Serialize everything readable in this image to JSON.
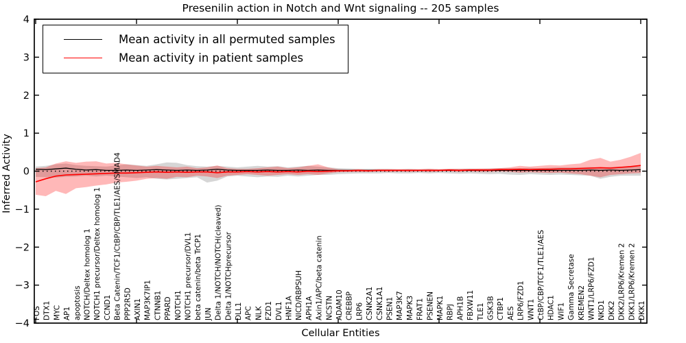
{
  "chart_data": {
    "type": "line",
    "title": "Presenilin action in Notch and Wnt signaling -- 205 samples",
    "xlabel": "Cellular Entities",
    "ylabel": "Inferred Activity",
    "ylim": [
      -4,
      4
    ],
    "yticks": [
      -4,
      -3,
      -2,
      -1,
      0,
      1,
      2,
      3,
      4
    ],
    "grid": false,
    "zero_line": true,
    "legend_position": "upper left",
    "categories": [
      "FOS",
      "DTX1",
      "MYC",
      "AP1",
      "apoptosis",
      "NOTCH/Deltex homolog 1",
      "NOTCH1 precursor/Deltex homolog 1",
      "CCND1",
      "Beta Catenin/TCF1/CtBP/CBP/TLE1/AES/SMAD4",
      "PPP2R5D",
      "AXIN1",
      "MAP3K7IP1",
      "CTNNB1",
      "PPARD",
      "NOTCH1",
      "NOTCH1 precursor/DVL1",
      "beta catenin/beta TrCP1",
      "JUN",
      "Delta 1/NOTCH/NOTCH(cleaved)",
      "Delta 1/NOTCHprecursor",
      "DLL1",
      "APC",
      "NLK",
      "FZD1",
      "DVL1",
      "HNF1A",
      "NICD/RBPSUH",
      "APH1A",
      "Axin1/APC/beta catenin",
      "NCSTN",
      "ADAM10",
      "CREBBP",
      "LRP6",
      "CSNK2A1",
      "CSNK1A1",
      "PSEN1",
      "MAP3K7",
      "MAPK3",
      "FRAT1",
      "PSENEN",
      "MAPK1",
      "RBPJ",
      "APH1B",
      "FBXW11",
      "TLE1",
      "GSK3B",
      "CTBP1",
      "AES",
      "LRP6/FZD1",
      "WNT1",
      "CtBP/CBP/TCF1/TLE1/AES",
      "HDAC1",
      "WIF1",
      "Gamma Secretase",
      "KREMEN2",
      "WNT1/LRP6/FZD1",
      "NKD1",
      "DKK2",
      "DKK2/LRP6/Kremen 2",
      "DKK1/LRP6/Kremen 2",
      "DKK1"
    ],
    "series": [
      {
        "name": "Mean activity in all permuted samples",
        "color": "#000000",
        "band_color": "rgba(0,0,0,0.16)",
        "values": [
          0.05,
          0.04,
          0.06,
          0.08,
          0.05,
          0.03,
          0.04,
          0.02,
          0.02,
          0.03,
          0.02,
          0.03,
          0.04,
          0.03,
          0.02,
          0.03,
          0.02,
          0.03,
          0.05,
          0.03,
          0.02,
          0.02,
          0.02,
          0.03,
          0.02,
          0.02,
          0.03,
          0.02,
          0.03,
          0.02,
          0.02,
          0.02,
          0.02,
          0.02,
          0.02,
          0.02,
          0.02,
          0.02,
          0.02,
          0.02,
          0.02,
          0.02,
          0.02,
          0.02,
          0.02,
          0.02,
          0.02,
          0.02,
          0.02,
          0.02,
          0.02,
          0.02,
          0.02,
          0.02,
          0.02,
          0.03,
          0.02,
          0.03,
          0.02,
          0.03,
          0.04
        ],
        "band_lo": [
          -0.15,
          -0.16,
          -0.17,
          -0.15,
          -0.14,
          -0.12,
          -0.14,
          -0.12,
          -0.14,
          -0.16,
          -0.18,
          -0.16,
          -0.2,
          -0.22,
          -0.2,
          -0.18,
          -0.16,
          -0.3,
          -0.25,
          -0.14,
          -0.12,
          -0.14,
          -0.16,
          -0.14,
          -0.15,
          -0.12,
          -0.14,
          -0.12,
          -0.1,
          -0.1,
          -0.08,
          -0.07,
          -0.06,
          -0.06,
          -0.06,
          -0.05,
          -0.06,
          -0.06,
          -0.05,
          -0.06,
          -0.05,
          -0.06,
          -0.07,
          -0.06,
          -0.07,
          -0.08,
          -0.07,
          -0.09,
          -0.1,
          -0.08,
          -0.09,
          -0.1,
          -0.09,
          -0.1,
          -0.11,
          -0.12,
          -0.2,
          -0.15,
          -0.12,
          -0.12,
          -0.12
        ],
        "band_hi": [
          0.12,
          0.14,
          0.18,
          0.2,
          0.16,
          0.14,
          0.13,
          0.12,
          0.15,
          0.18,
          0.16,
          0.14,
          0.18,
          0.23,
          0.22,
          0.16,
          0.13,
          0.12,
          0.14,
          0.12,
          0.1,
          0.12,
          0.14,
          0.12,
          0.13,
          0.1,
          0.12,
          0.14,
          0.12,
          0.1,
          0.08,
          0.07,
          0.06,
          0.06,
          0.06,
          0.06,
          0.05,
          0.06,
          0.05,
          0.06,
          0.05,
          0.06,
          0.06,
          0.07,
          0.06,
          0.07,
          0.08,
          0.08,
          0.08,
          0.09,
          0.08,
          0.09,
          0.1,
          0.1,
          0.1,
          0.11,
          0.1,
          0.11,
          0.12,
          0.12,
          0.13
        ]
      },
      {
        "name": "Mean activity in patient samples",
        "color": "#ff0000",
        "band_color": "rgba(255,0,0,0.28)",
        "values": [
          -0.28,
          -0.2,
          -0.13,
          -0.1,
          -0.09,
          -0.08,
          -0.07,
          -0.06,
          -0.05,
          -0.05,
          -0.04,
          -0.03,
          -0.02,
          -0.03,
          -0.02,
          -0.03,
          -0.02,
          -0.02,
          -0.04,
          -0.02,
          -0.02,
          -0.01,
          -0.02,
          -0.01,
          -0.02,
          -0.01,
          -0.02,
          0.0,
          -0.01,
          0.0,
          0.01,
          0.01,
          0.02,
          0.01,
          0.02,
          0.02,
          0.02,
          0.02,
          0.02,
          0.02,
          0.02,
          0.03,
          0.02,
          0.03,
          0.03,
          0.03,
          0.04,
          0.04,
          0.05,
          0.04,
          0.05,
          0.05,
          0.06,
          0.06,
          0.07,
          0.08,
          0.09,
          0.08,
          0.1,
          0.12,
          0.15
        ],
        "band_lo": [
          -0.62,
          -0.66,
          -0.52,
          -0.6,
          -0.45,
          -0.42,
          -0.38,
          -0.35,
          -0.3,
          -0.28,
          -0.25,
          -0.2,
          -0.18,
          -0.2,
          -0.15,
          -0.16,
          -0.12,
          -0.14,
          -0.18,
          -0.12,
          -0.1,
          -0.08,
          -0.1,
          -0.12,
          -0.1,
          -0.08,
          -0.1,
          -0.08,
          -0.1,
          -0.06,
          -0.03,
          -0.02,
          -0.02,
          -0.02,
          -0.01,
          -0.02,
          -0.01,
          -0.02,
          -0.01,
          -0.02,
          -0.01,
          -0.01,
          -0.02,
          -0.01,
          -0.02,
          -0.02,
          -0.01,
          -0.02,
          -0.04,
          -0.03,
          -0.04,
          -0.05,
          -0.04,
          -0.06,
          -0.08,
          -0.12,
          -0.16,
          -0.1,
          -0.08,
          -0.06,
          -0.05
        ],
        "band_hi": [
          0.08,
          0.1,
          0.2,
          0.26,
          0.22,
          0.25,
          0.26,
          0.2,
          0.22,
          0.18,
          0.15,
          0.12,
          0.14,
          0.12,
          0.1,
          0.12,
          0.08,
          0.1,
          0.15,
          0.08,
          0.06,
          0.06,
          0.08,
          0.1,
          0.12,
          0.08,
          0.1,
          0.14,
          0.18,
          0.1,
          0.05,
          0.04,
          0.05,
          0.04,
          0.05,
          0.05,
          0.05,
          0.05,
          0.05,
          0.06,
          0.05,
          0.06,
          0.06,
          0.06,
          0.07,
          0.07,
          0.08,
          0.1,
          0.14,
          0.12,
          0.14,
          0.16,
          0.15,
          0.18,
          0.2,
          0.3,
          0.35,
          0.25,
          0.3,
          0.38,
          0.48
        ]
      }
    ]
  }
}
